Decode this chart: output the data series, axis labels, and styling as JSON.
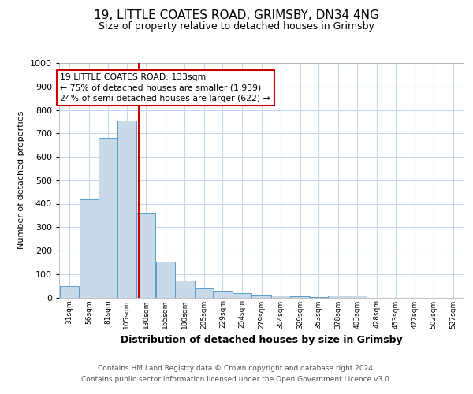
{
  "title1": "19, LITTLE COATES ROAD, GRIMSBY, DN34 4NG",
  "title2": "Size of property relative to detached houses in Grimsby",
  "xlabel": "Distribution of detached houses by size in Grimsby",
  "ylabel": "Number of detached properties",
  "bin_labels": [
    "31sqm",
    "56sqm",
    "81sqm",
    "105sqm",
    "130sqm",
    "155sqm",
    "180sqm",
    "205sqm",
    "229sqm",
    "254sqm",
    "279sqm",
    "304sqm",
    "329sqm",
    "353sqm",
    "378sqm",
    "403sqm",
    "428sqm",
    "453sqm",
    "477sqm",
    "502sqm",
    "527sqm"
  ],
  "bin_left": [
    31,
    56,
    81,
    105,
    130,
    155,
    180,
    205,
    229,
    254,
    279,
    304,
    329,
    353,
    378,
    403,
    428,
    453,
    477,
    502,
    527
  ],
  "bin_width": 25,
  "bar_heights": [
    50,
    420,
    680,
    755,
    360,
    153,
    73,
    40,
    27,
    17,
    13,
    8,
    4,
    2,
    10,
    7,
    0,
    0,
    0,
    0,
    0
  ],
  "bar_color": "#c8daea",
  "bar_edge_color": "#5b9ec9",
  "vline_x": 133,
  "vline_color": "#cc0000",
  "annotation_line1": "19 LITTLE COATES ROAD: 133sqm",
  "annotation_line2": "← 75% of detached houses are smaller (1,939)",
  "annotation_line3": "24% of semi-detached houses are larger (622) →",
  "annotation_box_facecolor": "#ffffff",
  "annotation_box_edgecolor": "#cc0000",
  "ylim": [
    0,
    1000
  ],
  "yticks": [
    0,
    100,
    200,
    300,
    400,
    500,
    600,
    700,
    800,
    900,
    1000
  ],
  "footer1": "Contains HM Land Registry data © Crown copyright and database right 2024.",
  "footer2": "Contains public sector information licensed under the Open Government Licence v3.0.",
  "bg_color": "#ffffff",
  "grid_color": "#c8d8e8",
  "title1_fontsize": 11,
  "title2_fontsize": 9,
  "xlabel_fontsize": 9,
  "ylabel_fontsize": 8
}
